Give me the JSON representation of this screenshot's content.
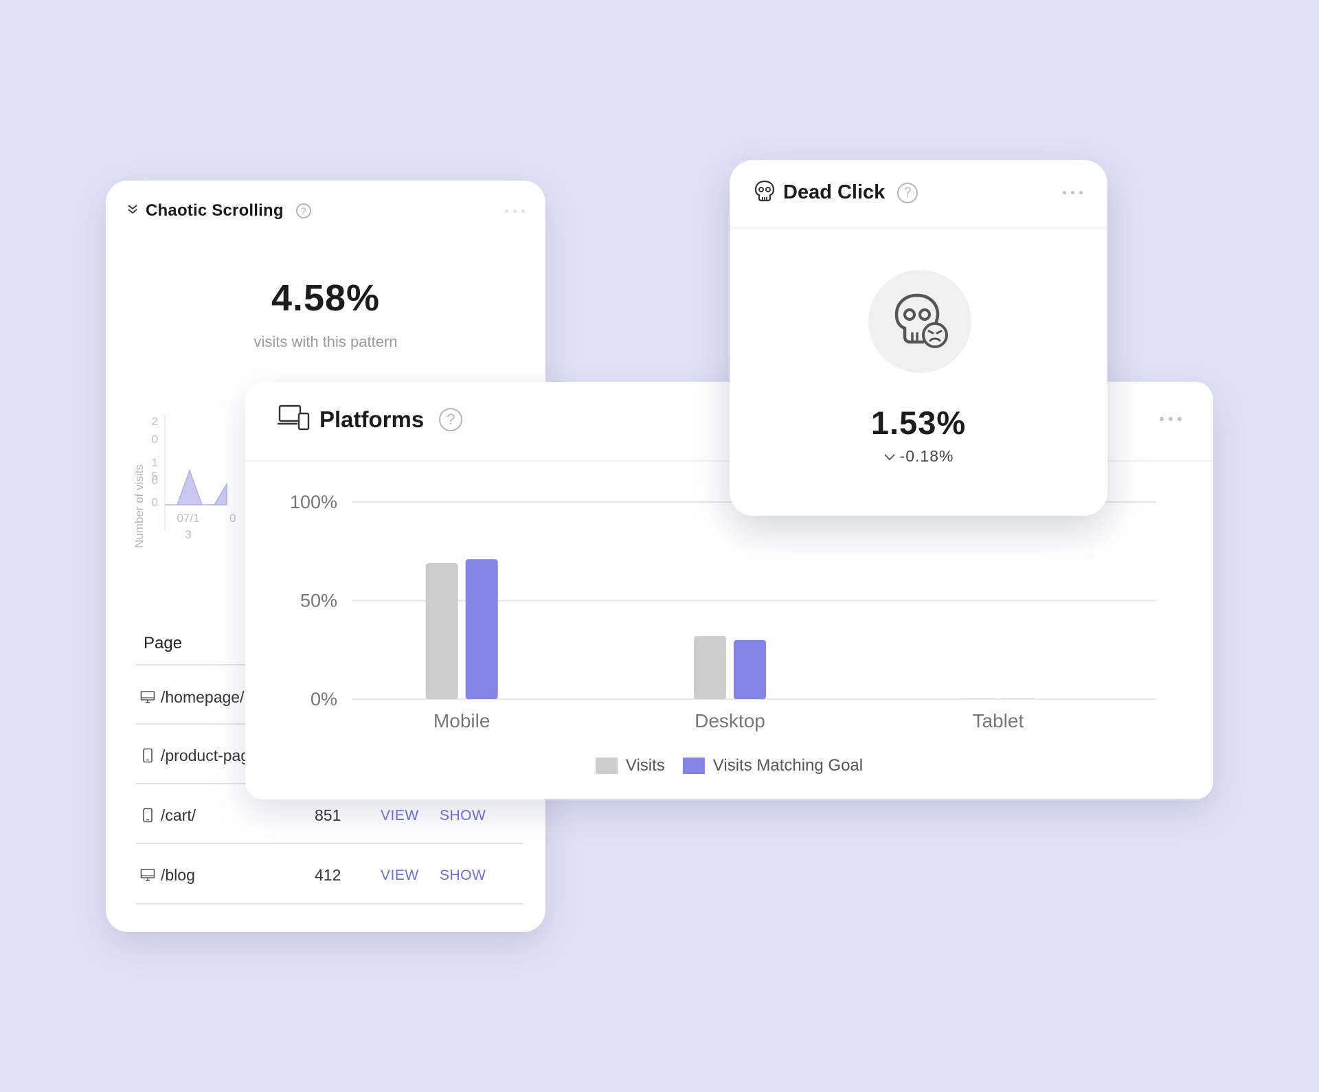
{
  "colors": {
    "background": "#e1e1f6",
    "accent": "#8484e6",
    "visits": "#cccccc",
    "link": "#6b6fd2"
  },
  "chaotic": {
    "title": "Chaotic Scrolling",
    "help": "?",
    "metric": "4.58%",
    "metric_label": "visits with this pattern",
    "chart_data": {
      "type": "area",
      "ylabel": "Number of visits",
      "y_ticks": [
        "2\n0",
        "1\n0",
        "5",
        "0"
      ],
      "x_ticks": [
        "07/1\n3",
        "0"
      ],
      "ylim": [
        0,
        20
      ],
      "series": [
        {
          "values": [
            0,
            0,
            5,
            0,
            0,
            3
          ]
        }
      ]
    },
    "table": {
      "header_page": "Page",
      "rows": [
        {
          "icon": "desktop-icon",
          "path": "/homepage/",
          "count": "",
          "view": "",
          "show": ""
        },
        {
          "icon": "mobile-icon",
          "path": "/product-page/",
          "count": "",
          "view": "",
          "show": ""
        },
        {
          "icon": "mobile-icon",
          "path": "/cart/",
          "count": "851",
          "view": "VIEW",
          "show": "SHOW"
        },
        {
          "icon": "desktop-icon",
          "path": "/blog",
          "count": "412",
          "view": "VIEW",
          "show": "SHOW"
        }
      ]
    }
  },
  "platforms": {
    "title": "Platforms",
    "help": "?",
    "chart_data": {
      "type": "bar",
      "categories": [
        "Mobile",
        "Desktop",
        "Tablet"
      ],
      "series": [
        {
          "name": "Visits",
          "values": [
            69,
            32,
            0
          ]
        },
        {
          "name": "Visits Matching Goal",
          "values": [
            71,
            30,
            0
          ]
        }
      ],
      "y_ticks": [
        "100%",
        "50%",
        "0%"
      ],
      "ylim": [
        0,
        100
      ]
    }
  },
  "deadclick": {
    "title": "Dead Click",
    "help": "?",
    "metric": "1.53%",
    "delta": "-0.18%"
  }
}
